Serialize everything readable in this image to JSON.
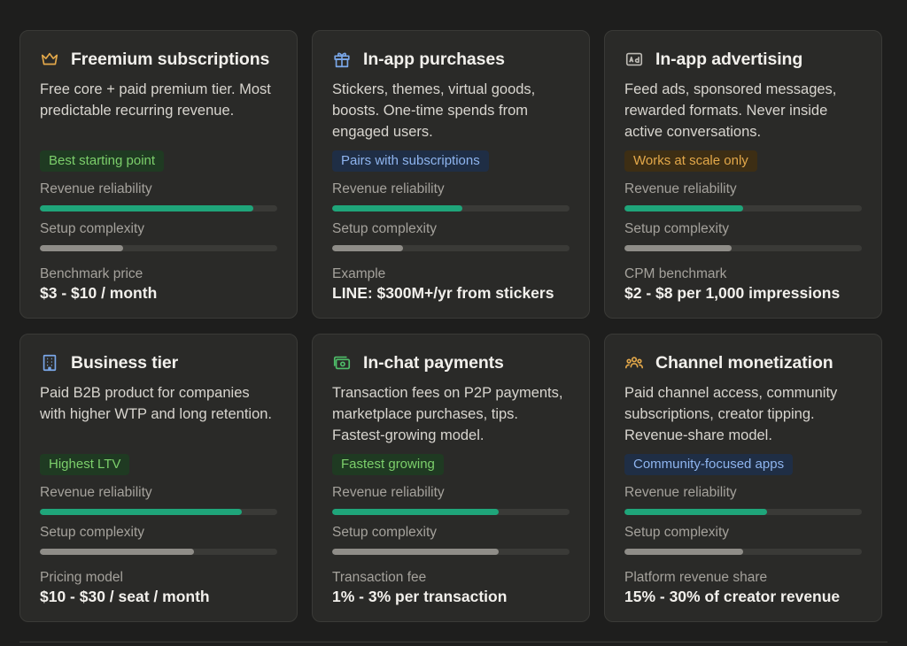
{
  "labels": {
    "reliability": "Revenue reliability",
    "complexity": "Setup complexity"
  },
  "cards": [
    {
      "icon": "crown-icon",
      "icon_color": "#e3a84a",
      "title": "Freemium subscriptions",
      "description": "Free core + paid premium tier. Most predictable recurring revenue.",
      "badge": "Best starting point",
      "badge_style": "green",
      "reliability": 0.9,
      "complexity": 0.35,
      "footer_label": "Benchmark price",
      "footer_value": "$3 - $10 / month"
    },
    {
      "icon": "gift-icon",
      "icon_color": "#7aa7e8",
      "title": "In-app purchases",
      "description": "Stickers, themes, virtual goods, boosts. One-time spends from engaged users.",
      "badge": "Pairs with subscriptions",
      "badge_style": "blue",
      "reliability": 0.55,
      "complexity": 0.3,
      "footer_label": "Example",
      "footer_value": "LINE: $300M+/yr from stickers"
    },
    {
      "icon": "ad-icon",
      "icon_color": "#bdbab4",
      "title": "In-app advertising",
      "description": "Feed ads, sponsored messages, rewarded formats. Never inside active conversations.",
      "badge": "Works at scale only",
      "badge_style": "amber",
      "reliability": 0.5,
      "complexity": 0.45,
      "footer_label": "CPM benchmark",
      "footer_value": "$2 - $8 per 1,000 impressions"
    },
    {
      "icon": "building-icon",
      "icon_color": "#7aa7e8",
      "title": "Business tier",
      "description": "Paid B2B product for companies with higher WTP and long retention.",
      "badge": "Highest LTV",
      "badge_style": "green",
      "reliability": 0.85,
      "complexity": 0.65,
      "footer_label": "Pricing model",
      "footer_value": "$10 - $30 / seat / month"
    },
    {
      "icon": "payment-icon",
      "icon_color": "#4fbf6a",
      "title": "In-chat payments",
      "description": "Transaction fees on P2P payments, marketplace purchases, tips. Fastest-growing model.",
      "badge": "Fastest growing",
      "badge_style": "green",
      "reliability": 0.7,
      "complexity": 0.7,
      "footer_label": "Transaction fee",
      "footer_value": "1% - 3% per transaction"
    },
    {
      "icon": "community-icon",
      "icon_color": "#e3a84a",
      "title": "Channel monetization",
      "description": "Paid channel access, community subscriptions, creator tipping. Revenue-share model.",
      "badge": "Community-focused apps",
      "badge_style": "blue",
      "reliability": 0.6,
      "complexity": 0.5,
      "footer_label": "Platform revenue share",
      "footer_value": "15% - 30% of creator revenue"
    }
  ]
}
